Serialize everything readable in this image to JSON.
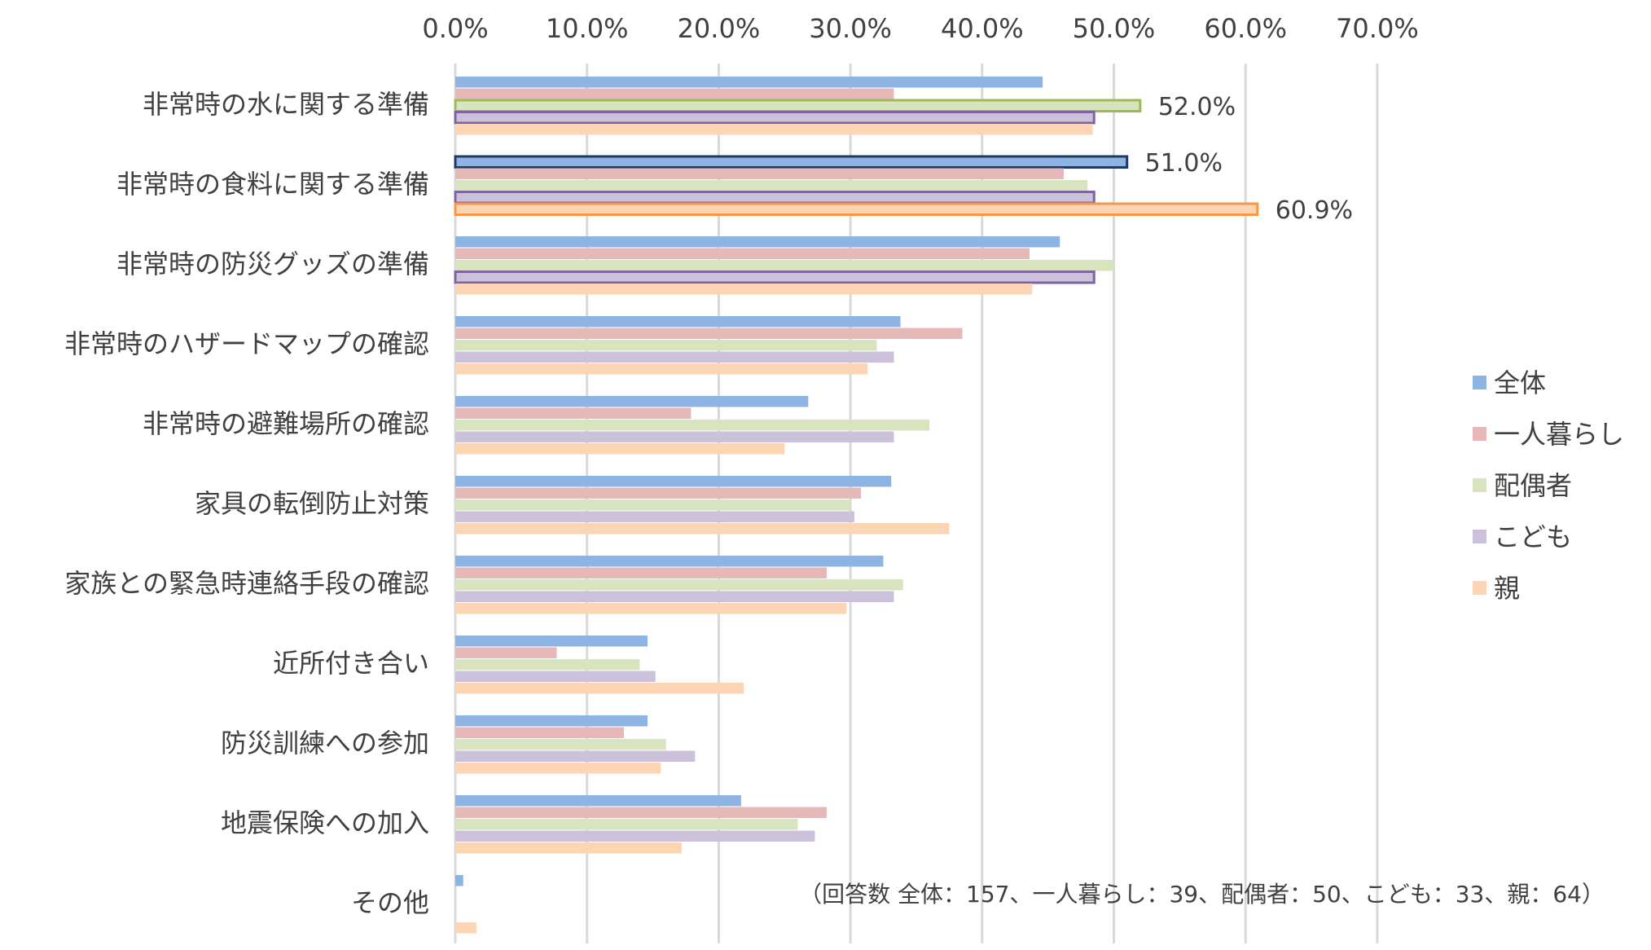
{
  "chart_data": {
    "type": "bar",
    "orientation": "horizontal",
    "title": "",
    "xlabel": "",
    "ylabel": "",
    "xlim": [
      0,
      70
    ],
    "x_ticks": [
      "0.0%",
      "10.0%",
      "20.0%",
      "30.0%",
      "40.0%",
      "50.0%",
      "60.0%",
      "70.0%"
    ],
    "x_tick_values": [
      0,
      10,
      20,
      30,
      40,
      50,
      60,
      70
    ],
    "x_axis_position": "top",
    "grid": true,
    "legend_position": "right",
    "categories": [
      "非常時の水に関する準備",
      "非常時の食料に関する準備",
      "非常時の防災グッズの準備",
      "非常時のハザードマップの確認",
      "非常時の避難場所の確認",
      "家具の転倒防止対策",
      "家族との緊急時連絡手段の確認",
      "近所付き合い",
      "防災訓練への参加",
      "地震保険への加入",
      "その他"
    ],
    "series": [
      {
        "name": "全体",
        "color": "#8EB4E3",
        "values": [
          44.6,
          51.0,
          45.9,
          33.8,
          26.8,
          33.1,
          32.5,
          14.6,
          14.6,
          21.7,
          0.6
        ]
      },
      {
        "name": "一人暮らし",
        "color": "#E6B9B8",
        "values": [
          33.3,
          46.2,
          43.6,
          38.5,
          17.9,
          30.8,
          28.2,
          7.7,
          12.8,
          28.2,
          0.0
        ]
      },
      {
        "name": "配偶者",
        "color": "#D7E4BD",
        "values": [
          52.0,
          48.0,
          50.0,
          32.0,
          36.0,
          30.0,
          34.0,
          14.0,
          16.0,
          26.0,
          0.0
        ]
      },
      {
        "name": "こども",
        "color": "#CCC1DA",
        "values": [
          48.5,
          48.5,
          48.5,
          33.3,
          33.3,
          30.3,
          33.3,
          15.2,
          18.2,
          27.3,
          0.0
        ]
      },
      {
        "name": "親",
        "color": "#FCD5B5",
        "values": [
          48.4,
          60.9,
          43.8,
          31.3,
          25.0,
          37.5,
          29.7,
          21.9,
          15.6,
          17.2,
          1.6
        ]
      }
    ],
    "highlights": [
      {
        "category_index": 0,
        "series_index": 2,
        "border_color": "#9BBB59",
        "label": "52.0%"
      },
      {
        "category_index": 0,
        "series_index": 3,
        "border_color": "#8064A2"
      },
      {
        "category_index": 1,
        "series_index": 0,
        "border_color": "#1F3864",
        "label": "51.0%"
      },
      {
        "category_index": 1,
        "series_index": 3,
        "border_color": "#8064A2"
      },
      {
        "category_index": 1,
        "series_index": 4,
        "border_color": "#F79646",
        "label": "60.9%"
      },
      {
        "category_index": 2,
        "series_index": 3,
        "border_color": "#8064A2"
      }
    ],
    "annotation": "（回答数  全体：157、一人暮らし：39、配偶者：50、こども：33、親：64）"
  }
}
